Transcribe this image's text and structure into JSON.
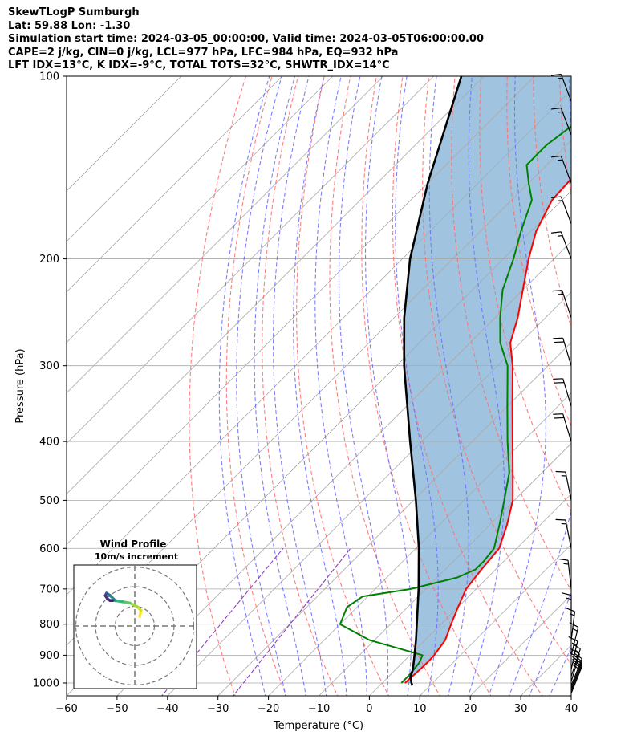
{
  "header": {
    "lines": [
      "SkewTLogP Sumburgh",
      "Lat: 59.88   Lon: -1.30",
      "Simulation start time: 2024-03-05_00:00:00, Valid time: 2024-03-05T06:00:00.00",
      "CAPE=2 j/kg, CIN=0 j/kg, LCL=977 hPa, LFC=984 hPa, EQ=932 hPa",
      "LFT IDX=13°C, K IDX=-9°C, TOTAL TOTS=32°C, SHWTR_IDX=14°C"
    ]
  },
  "chart_data": {
    "type": "line",
    "title": "SkewTLogP Sumburgh",
    "xlabel": "Temperature (°C)",
    "ylabel": "Pressure (hPa)",
    "xlim": [
      -60,
      40
    ],
    "ylim": [
      1050,
      100
    ],
    "y_log_scale": true,
    "grid": true,
    "x_ticks": [
      -60,
      -50,
      -40,
      -30,
      -20,
      -10,
      0,
      10,
      20,
      30,
      40
    ],
    "x_tick_labels": [
      "−60",
      "−50",
      "−40",
      "−30",
      "−20",
      "−10",
      "0",
      "10",
      "20",
      "30",
      "40"
    ],
    "y_ticks": [
      1000,
      900,
      800,
      700,
      600,
      500,
      400,
      300,
      200,
      100
    ],
    "y_tick_labels": [
      "1000",
      "900",
      "800",
      "700",
      "600",
      "500",
      "400",
      "300",
      "200",
      "100"
    ],
    "colors": {
      "temperature": "#ff0000",
      "dewpoint": "#008000",
      "parcel": "#000000",
      "cape_fill": "#a0c4e0",
      "dry_adiabats": "#ff6f6f",
      "moist_adiabats": "#6f6fff",
      "mixing_ratio": "#9040c0",
      "isotherms": "#a8a8a8"
    },
    "series": [
      {
        "key": "temperature",
        "pressure": [
          1000,
          950,
          925,
          900,
          850,
          800,
          750,
          700,
          650,
          600,
          550,
          500,
          450,
          400,
          350,
          300,
          275,
          250,
          225,
          200,
          180,
          160,
          145,
          130,
          115,
          100
        ],
        "temp": [
          4.5,
          4.8,
          4.9,
          4.8,
          4.0,
          2.0,
          0.0,
          -2.0,
          -2.8,
          -3.5,
          -6.5,
          -10.3,
          -15.8,
          -22.0,
          -29.0,
          -37.0,
          -42.0,
          -45.5,
          -50.0,
          -55.0,
          -59.0,
          -62.0,
          -62.5,
          -62.5,
          -60.5,
          -58.0
        ]
      },
      {
        "key": "dewpoint",
        "pressure": [
          1000,
          975,
          950,
          925,
          900,
          850,
          800,
          750,
          720,
          700,
          670,
          650,
          630,
          600,
          550,
          500,
          450,
          400,
          350,
          300,
          275,
          250,
          225,
          200,
          180,
          160,
          150,
          140,
          130,
          115,
          100
        ],
        "temp": [
          3.8,
          3.8,
          3.6,
          3.3,
          2.5,
          -11.0,
          -20.0,
          -22.0,
          -21.0,
          -13.0,
          -6.0,
          -4.0,
          -4.0,
          -4.5,
          -8.0,
          -12.0,
          -16.5,
          -23.0,
          -30.0,
          -38.0,
          -44.0,
          -49.0,
          -54.0,
          -58.0,
          -62.0,
          -66.0,
          -70.0,
          -74.0,
          -74.0,
          -72.0,
          -70.0
        ]
      },
      {
        "key": "parcel",
        "pressure": [
          1010,
          1000,
          977,
          950,
          900,
          850,
          800,
          700,
          600,
          500,
          400,
          300,
          250,
          200,
          150,
          100
        ],
        "temp": [
          6.5,
          5.8,
          4.4,
          3.4,
          0.9,
          -1.8,
          -4.8,
          -11.4,
          -19.4,
          -29.5,
          -42.3,
          -58.5,
          -68.0,
          -78.5,
          -90.0,
          -104.5
        ]
      }
    ],
    "hodograph": {
      "title": "Wind Profile",
      "subtitle": "10m/s increment",
      "ring_count": 3,
      "range": 25,
      "points": [
        [
          2.0,
          -2.0
        ],
        [
          2.5,
          0.5
        ],
        [
          1.0,
          2.0
        ],
        [
          -2.0,
          3.5
        ],
        [
          -5.0,
          4.0
        ],
        [
          -8.0,
          4.5
        ],
        [
          -10.0,
          6.5
        ],
        [
          -11.5,
          7.5
        ],
        [
          -12.0,
          6.5
        ],
        [
          -11.0,
          5.0
        ],
        [
          -10.0,
          4.5
        ],
        [
          -9.0,
          4.5
        ]
      ]
    },
    "wind_barbs": [
      {
        "pressure": 1040,
        "u": -4,
        "v": -10
      },
      {
        "pressure": 1030,
        "u": -4,
        "v": -10
      },
      {
        "pressure": 1020,
        "u": -4,
        "v": -10
      },
      {
        "pressure": 1010,
        "u": -4,
        "v": -10
      },
      {
        "pressure": 995,
        "u": -3,
        "v": -10
      },
      {
        "pressure": 975,
        "u": -3,
        "v": -9
      },
      {
        "pressure": 950,
        "u": -2,
        "v": -9
      },
      {
        "pressure": 900,
        "u": -2,
        "v": -8
      },
      {
        "pressure": 850,
        "u": -1,
        "v": -8
      },
      {
        "pressure": 800,
        "u": 0,
        "v": -8
      },
      {
        "pressure": 700,
        "u": 1,
        "v": -9
      },
      {
        "pressure": 600,
        "u": 2,
        "v": -10
      },
      {
        "pressure": 500,
        "u": 2,
        "v": -10
      },
      {
        "pressure": 400,
        "u": 3,
        "v": -10
      },
      {
        "pressure": 350,
        "u": 3,
        "v": -10
      },
      {
        "pressure": 300,
        "u": 3,
        "v": -10
      },
      {
        "pressure": 250,
        "u": 3,
        "v": -9
      },
      {
        "pressure": 200,
        "u": 3,
        "v": -8
      },
      {
        "pressure": 175,
        "u": 3,
        "v": -8
      },
      {
        "pressure": 150,
        "u": 3,
        "v": -8
      },
      {
        "pressure": 125,
        "u": 3,
        "v": -8
      },
      {
        "pressure": 110,
        "u": 3,
        "v": -8
      }
    ]
  }
}
